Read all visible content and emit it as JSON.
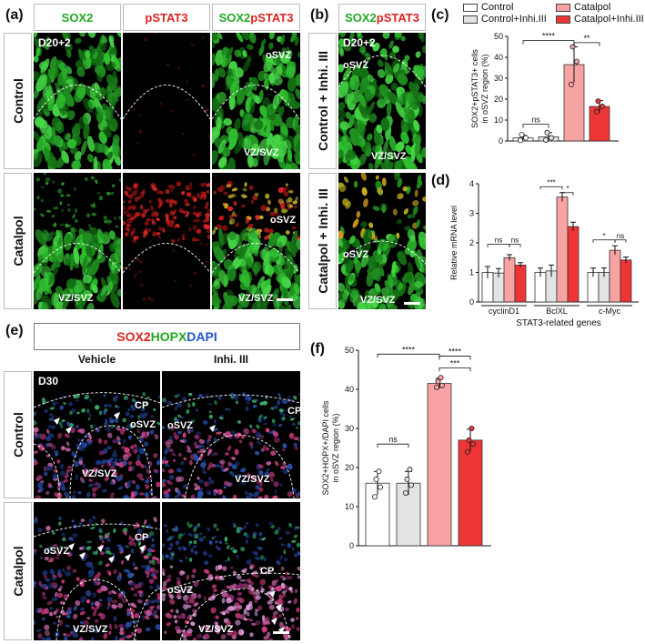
{
  "panel_a": {
    "letter": "(a)",
    "headers": [
      {
        "text": "SOX2",
        "color": "#22aa22"
      },
      {
        "text": "pSTAT3",
        "color": "#dd2222"
      }
    ],
    "merge_header": {
      "part1": "SOX2",
      "part2": "pSTAT3"
    },
    "row_labels": [
      "Control",
      "Catalpol"
    ],
    "day": "D20+2",
    "osvz": "oSVZ",
    "vzsvz": "VZ/SVZ"
  },
  "panel_b": {
    "letter": "(b)",
    "header": {
      "part1": "SOX2",
      "part2": "pSTAT3"
    },
    "row_labels": [
      "Control + Inhi. III",
      "Catalpol + Inhi. III"
    ],
    "day": "D20+2",
    "osvz": "oSVZ",
    "vzsvz": "VZ/SVZ"
  },
  "panel_c": {
    "letter": "(c)"
  },
  "panel_d": {
    "letter": "(d)"
  },
  "panel_e": {
    "letter": "(e)",
    "title": {
      "sox2": "SOX2",
      "hopx": "HOPX",
      "dapi": "DAPI"
    },
    "col_labels": [
      "Vehicle",
      "Inhi. III"
    ],
    "row_labels": [
      "Control",
      "Catalpol"
    ],
    "day": "D30",
    "cp": "CP",
    "osvz": "oSVZ",
    "vzsvz": "VZ/SVZ"
  },
  "panel_f": {
    "letter": "(f)"
  },
  "legend": [
    {
      "label": "Control",
      "color": "#ffffff"
    },
    {
      "label": "Catalpol",
      "color": "#f7a3a3"
    },
    {
      "label": "Control+Inhi.III",
      "color": "#e3e3e3"
    },
    {
      "label": "Catalpol+Inhi.III",
      "color": "#ee3535"
    }
  ],
  "chart_data": [
    {
      "panel": "(c)",
      "type": "bar",
      "ylabel": "SOX2+pSTAT3+ cells in oSVZ region (%)",
      "ylim": [
        0,
        50
      ],
      "yticks": [
        0,
        10,
        20,
        30,
        40,
        50
      ],
      "categories": [
        "Control",
        "Control+Inhi.III",
        "Catalpol",
        "Catalpol+Inhi.III"
      ],
      "values": [
        1.5,
        2,
        36.5,
        16.5
      ],
      "errors": [
        1.2,
        2,
        8.5,
        2.8
      ],
      "points": [
        [
          0.3,
          1.5,
          3
        ],
        [
          0.5,
          1.5,
          4
        ],
        [
          27,
          38,
          45
        ],
        [
          14,
          16.5,
          19
        ]
      ],
      "significance": [
        {
          "pair": [
            0,
            1
          ],
          "label": "ns",
          "y": 8
        },
        {
          "pair": [
            0,
            2
          ],
          "label": "****",
          "y": 48
        },
        {
          "pair": [
            2,
            3
          ],
          "label": "**",
          "y": 47
        }
      ]
    },
    {
      "panel": "(d)",
      "type": "bar",
      "ylabel": "Relative mRNA level",
      "xlabel": "STAT3-related genes",
      "ylim": [
        0,
        4
      ],
      "yticks": [
        0,
        1,
        2,
        3,
        4
      ],
      "groups": [
        "cyclinD1",
        "BclXL",
        "c-Myc"
      ],
      "series": [
        {
          "name": "Control",
          "values": [
            1.0,
            1.0,
            1.0
          ],
          "errors": [
            0.2,
            0.15,
            0.15
          ]
        },
        {
          "name": "Control+Inhi.III",
          "values": [
            0.98,
            1.05,
            1.0
          ],
          "errors": [
            0.15,
            0.2,
            0.15
          ]
        },
        {
          "name": "Catalpol",
          "values": [
            1.5,
            3.55,
            1.75
          ],
          "errors": [
            0.1,
            0.15,
            0.15
          ]
        },
        {
          "name": "Catalpol+Inhi.III",
          "values": [
            1.25,
            2.55,
            1.42
          ],
          "errors": [
            0.08,
            0.15,
            0.1
          ]
        }
      ],
      "significance": [
        {
          "group": 0,
          "pair": [
            0,
            2
          ],
          "label": "ns",
          "y": 1.95
        },
        {
          "group": 0,
          "pair": [
            2,
            3
          ],
          "label": "ns",
          "y": 1.95
        },
        {
          "group": 1,
          "pair": [
            0,
            2
          ],
          "label": "***",
          "y": 3.9
        },
        {
          "group": 1,
          "pair": [
            2,
            3
          ],
          "label": "*",
          "y": 3.7
        },
        {
          "group": 2,
          "pair": [
            0,
            2
          ],
          "label": "*",
          "y": 2.1
        },
        {
          "group": 2,
          "pair": [
            2,
            3
          ],
          "label": "ns",
          "y": 2.1
        }
      ]
    },
    {
      "panel": "(f)",
      "type": "bar",
      "ylabel": "SOX2+HOPX+/DAPI cells in oSVZ region (%)",
      "ylim": [
        0,
        50
      ],
      "yticks": [
        0,
        10,
        20,
        30,
        40,
        50
      ],
      "categories": [
        "Control",
        "Control+Inhi.III",
        "Catalpol",
        "Catalpol+Inhi.III"
      ],
      "values": [
        16,
        16,
        41.5,
        27
      ],
      "errors": [
        3,
        3,
        1.3,
        2.8
      ],
      "points": [
        [
          12.5,
          15,
          17,
          19
        ],
        [
          13.5,
          15.5,
          17,
          19.5
        ],
        [
          40.5,
          41,
          42,
          43
        ],
        [
          24,
          26,
          27,
          30
        ]
      ],
      "significance": [
        {
          "pair": [
            0,
            1
          ],
          "label": "ns",
          "y": 26
        },
        {
          "pair": [
            0,
            2
          ],
          "label": "****",
          "y": 49
        },
        {
          "pair": [
            2,
            3
          ],
          "label": "****",
          "y": 48.5
        },
        {
          "pair": [
            2,
            3
          ],
          "label": "***",
          "y": 45.5
        }
      ]
    }
  ]
}
